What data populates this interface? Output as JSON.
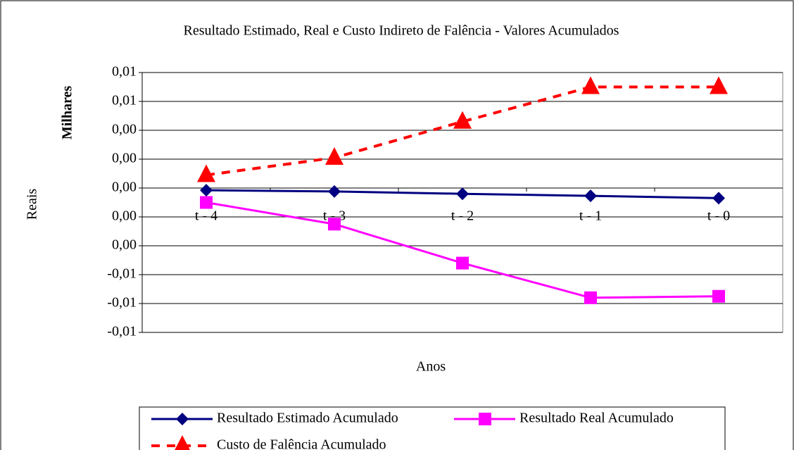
{
  "chart_data": {
    "type": "line",
    "title": "Resultado Estimado, Real e Custo Indireto de Falência - Valores Acumulados",
    "y_axis_unit": "Milhares",
    "y_label": "Reais",
    "x_label": "Anos",
    "categories": [
      "t - 4",
      "t - 3",
      "t - 2",
      "t - 1",
      "t - 0"
    ],
    "series": [
      {
        "name": "Resultado Estimado Acumulado",
        "color": "#000080",
        "marker": "diamond",
        "dash": false,
        "values": [
          -0.00015,
          -0.00024,
          -0.0004,
          -0.00054,
          -0.0007
        ]
      },
      {
        "name": "Resultado Real Acumulado",
        "color": "#ff00ff",
        "marker": "square",
        "dash": false,
        "values": [
          -0.001,
          -0.0025,
          -0.0052,
          -0.0076,
          -0.0075
        ]
      },
      {
        "name": "Custo de Falência Acumulado",
        "color": "#ff0000",
        "marker": "triangle",
        "dash": true,
        "values": [
          0.0009,
          0.0021,
          0.0046,
          0.007,
          0.007
        ]
      }
    ],
    "ylim": [
      -0.01,
      0.008
    ],
    "yticks": [
      {
        "value": 0.008,
        "label": "0,01"
      },
      {
        "value": 0.006,
        "label": "0,01"
      },
      {
        "value": 0.004,
        "label": "0,00"
      },
      {
        "value": 0.002,
        "label": "0,00"
      },
      {
        "value": 0,
        "label": "0,00"
      },
      {
        "value": -0.002,
        "label": "0,00"
      },
      {
        "value": -0.004,
        "label": "0,00"
      },
      {
        "value": -0.006,
        "label": "-0,01"
      },
      {
        "value": -0.008,
        "label": "-0,01"
      },
      {
        "value": -0.01,
        "label": "-0,01"
      }
    ],
    "grid": true
  }
}
